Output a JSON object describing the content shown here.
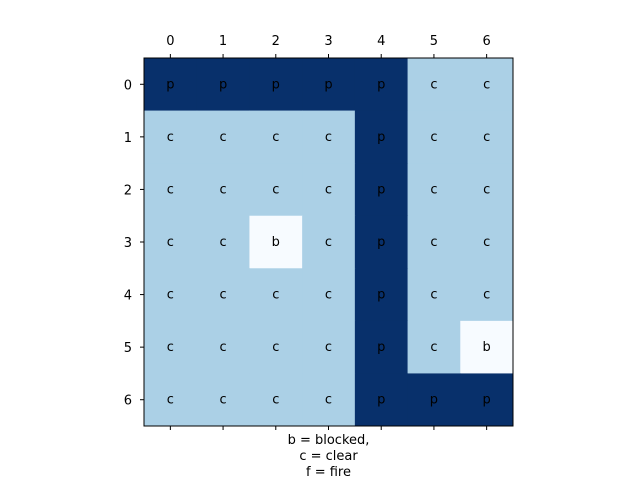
{
  "chart_data": {
    "type": "heatmap",
    "x_ticks": [
      "0",
      "1",
      "2",
      "3",
      "4",
      "5",
      "6"
    ],
    "y_ticks": [
      "0",
      "1",
      "2",
      "3",
      "4",
      "5",
      "6"
    ],
    "cells": [
      [
        "p",
        "p",
        "p",
        "p",
        "p",
        "c",
        "c"
      ],
      [
        "c",
        "c",
        "c",
        "c",
        "p",
        "c",
        "c"
      ],
      [
        "c",
        "c",
        "c",
        "c",
        "p",
        "c",
        "c"
      ],
      [
        "c",
        "c",
        "b",
        "c",
        "p",
        "c",
        "c"
      ],
      [
        "c",
        "c",
        "c",
        "c",
        "p",
        "c",
        "c"
      ],
      [
        "c",
        "c",
        "c",
        "c",
        "p",
        "c",
        "b"
      ],
      [
        "c",
        "c",
        "c",
        "c",
        "p",
        "p",
        "p"
      ]
    ],
    "colors": {
      "p": "#08306b",
      "c": "#abd0e6",
      "b": "#f7fbff"
    },
    "xlabel_lines": [
      "b = blocked,",
      "c = clear",
      "f = fire"
    ],
    "x_tick_position": "top",
    "grid": false
  }
}
